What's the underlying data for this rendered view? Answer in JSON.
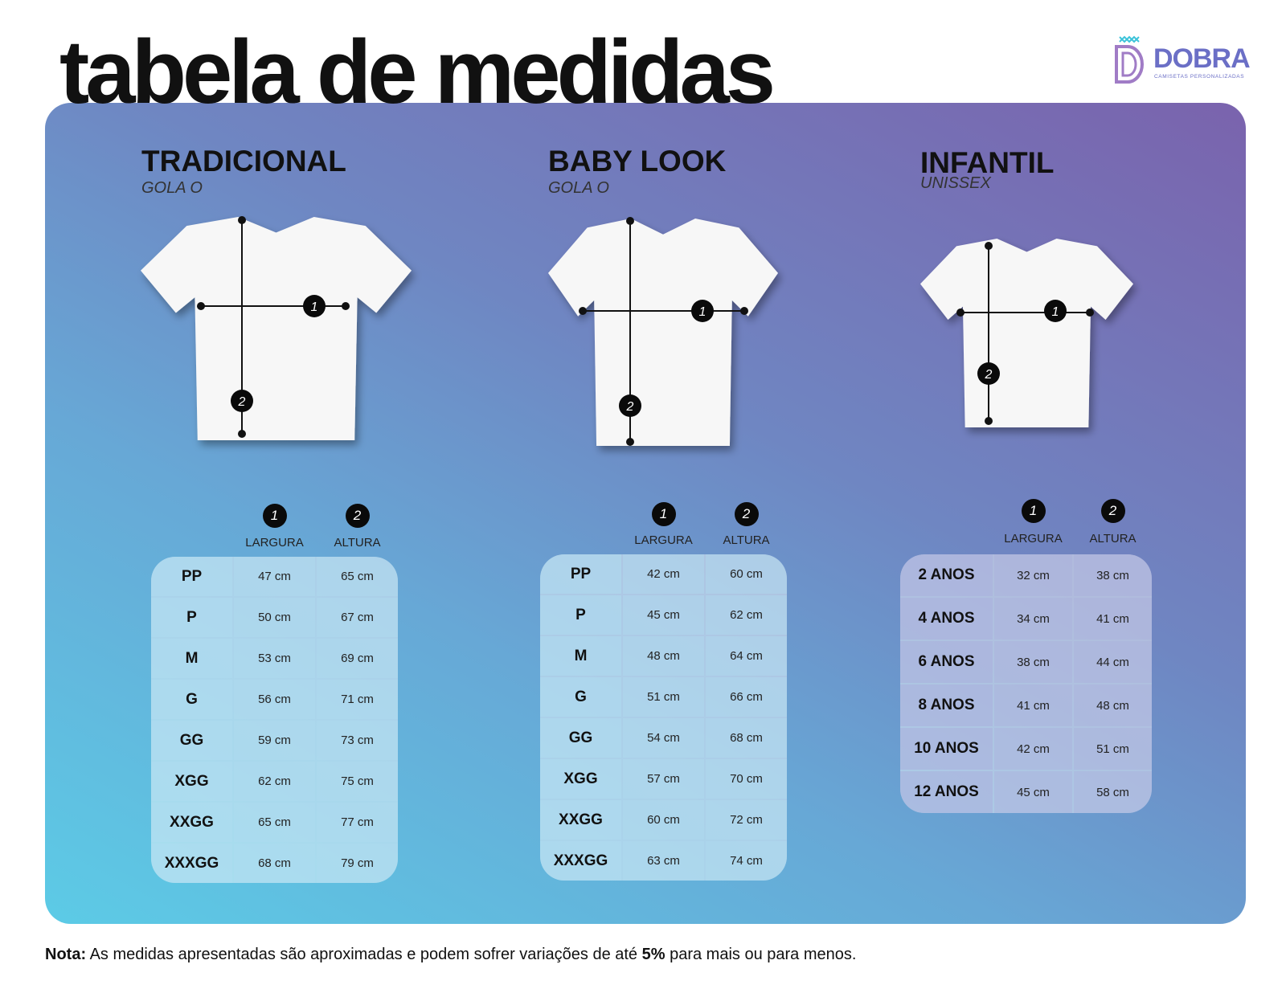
{
  "header": {
    "title": "tabela de medidas",
    "logo": {
      "name": "DOBRA",
      "tagline": "CAMISETAS PERSONALIZADAS"
    }
  },
  "markers": [
    "1",
    "2"
  ],
  "sections": [
    {
      "title": "TRADICIONAL",
      "subtitle": "GOLA O",
      "columns": [
        "LARGURA",
        "ALTURA"
      ],
      "rows": [
        [
          "PP",
          "47 cm",
          "65 cm"
        ],
        [
          "P",
          "50 cm",
          "67 cm"
        ],
        [
          "M",
          "53 cm",
          "69 cm"
        ],
        [
          "G",
          "56 cm",
          "71 cm"
        ],
        [
          "GG",
          "59 cm",
          "73 cm"
        ],
        [
          "XGG",
          "62 cm",
          "75 cm"
        ],
        [
          "XXGG",
          "65 cm",
          "77 cm"
        ],
        [
          "XXXGG",
          "68 cm",
          "79 cm"
        ]
      ]
    },
    {
      "title": "BABY LOOK",
      "subtitle": "GOLA O",
      "columns": [
        "LARGURA",
        "ALTURA"
      ],
      "rows": [
        [
          "PP",
          "42 cm",
          "60 cm"
        ],
        [
          "P",
          "45 cm",
          "62 cm"
        ],
        [
          "M",
          "48 cm",
          "64 cm"
        ],
        [
          "G",
          "51 cm",
          "66 cm"
        ],
        [
          "GG",
          "54 cm",
          "68 cm"
        ],
        [
          "XGG",
          "57 cm",
          "70 cm"
        ],
        [
          "XXGG",
          "60 cm",
          "72 cm"
        ],
        [
          "XXXGG",
          "63 cm",
          "74 cm"
        ]
      ]
    },
    {
      "title": "INFANTIL",
      "subtitle": "UNISSEX",
      "columns": [
        "LARGURA",
        "ALTURA"
      ],
      "rows": [
        [
          "2 ANOS",
          "32 cm",
          "38 cm"
        ],
        [
          "4 ANOS",
          "34 cm",
          "41 cm"
        ],
        [
          "6 ANOS",
          "38 cm",
          "44 cm"
        ],
        [
          "8 ANOS",
          "41 cm",
          "48 cm"
        ],
        [
          "10 ANOS",
          "42 cm",
          "51 cm"
        ],
        [
          "12 ANOS",
          "45 cm",
          "58 cm"
        ]
      ]
    }
  ],
  "note": {
    "label": "Nota:",
    "text_before": "As medidas apresentadas são aproximadas e podem sofrer variações de até",
    "highlight": "5%",
    "text_after": "para mais ou para menos."
  }
}
